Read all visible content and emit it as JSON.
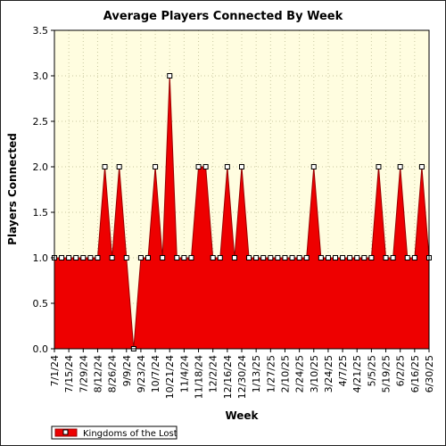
{
  "chart_data": {
    "type": "area",
    "title": "Average Players Connected By Week",
    "xlabel": "Week",
    "ylabel": "Players Connected",
    "ylim": [
      0,
      3.5
    ],
    "yticks": [
      "0.0",
      "0.5",
      "1.0",
      "1.5",
      "2.0",
      "2.5",
      "3.0",
      "3.5"
    ],
    "grid": true,
    "legend_position": "bottom-left",
    "colors": {
      "fill": "#ee0000",
      "line": "#990000",
      "plot_bg": "#fffde0",
      "grid": "#c8c8a0",
      "marker": "#ffffff"
    },
    "x": [
      "7/1/24",
      "7/8/24",
      "7/15/24",
      "7/22/24",
      "7/29/24",
      "8/5/24",
      "8/12/24",
      "8/19/24",
      "8/26/24",
      "9/2/24",
      "9/9/24",
      "9/16/24",
      "9/23/24",
      "9/30/24",
      "10/7/24",
      "10/14/24",
      "10/21/24",
      "10/28/24",
      "11/4/24",
      "11/11/24",
      "11/18/24",
      "11/25/24",
      "12/2/24",
      "12/9/24",
      "12/16/24",
      "12/23/24",
      "12/30/24",
      "1/6/25",
      "1/13/25",
      "1/20/25",
      "1/27/25",
      "2/3/25",
      "2/10/25",
      "2/17/25",
      "2/24/25",
      "3/3/25",
      "3/10/25",
      "3/17/25",
      "3/24/25",
      "3/31/25",
      "4/7/25",
      "4/14/25",
      "4/21/25",
      "4/28/25",
      "5/5/25",
      "5/12/25",
      "5/19/25",
      "5/26/25",
      "6/2/25",
      "6/9/25",
      "6/16/25",
      "6/23/25",
      "6/30/25"
    ],
    "tick_labels": [
      "7/1/24",
      "7/15/24",
      "7/29/24",
      "8/12/24",
      "8/26/24",
      "9/9/24",
      "9/23/24",
      "10/7/24",
      "10/21/24",
      "11/4/24",
      "11/18/24",
      "12/2/24",
      "12/16/24",
      "12/30/24",
      "1/13/25",
      "1/27/25",
      "2/10/25",
      "2/24/25",
      "3/10/25",
      "3/24/25",
      "4/7/25",
      "4/21/25",
      "5/5/25",
      "5/19/25",
      "6/2/25",
      "6/16/25",
      "6/30/25"
    ],
    "series": [
      {
        "name": "Kingdoms of the Lost",
        "values": [
          1,
          1,
          1,
          1,
          1,
          1,
          1,
          2,
          1,
          2,
          1,
          0,
          1,
          1,
          2,
          1,
          3,
          1,
          1,
          1,
          2,
          2,
          1,
          1,
          2,
          1,
          2,
          1,
          1,
          1,
          1,
          1,
          1,
          1,
          1,
          1,
          2,
          1,
          1,
          1,
          1,
          1,
          1,
          1,
          1,
          2,
          1,
          1,
          2,
          1,
          1,
          2,
          1
        ]
      }
    ]
  }
}
